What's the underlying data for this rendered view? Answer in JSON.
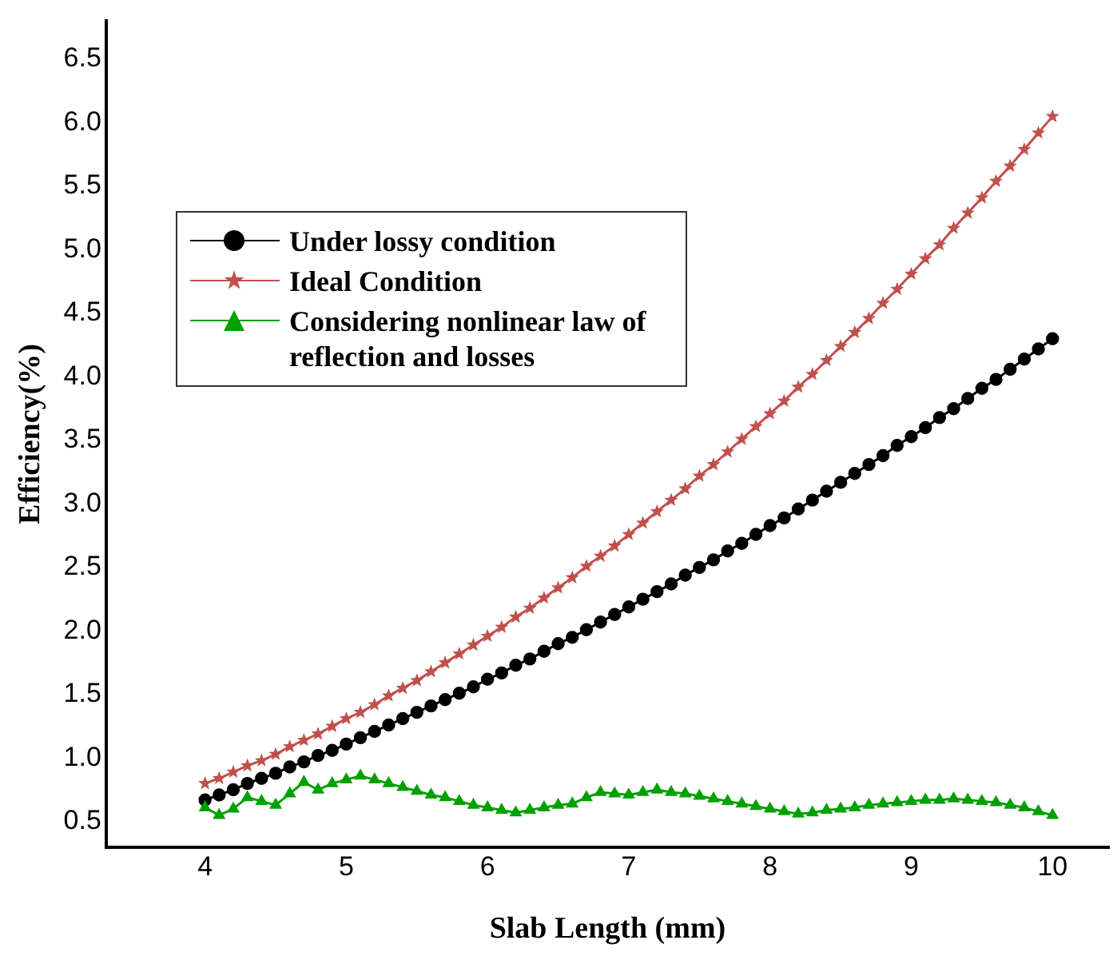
{
  "chart_data": {
    "type": "line",
    "xlabel": "Slab Length (mm)",
    "ylabel": "Efficiency(%)",
    "x": [
      4.0,
      4.1,
      4.2,
      4.3,
      4.4,
      4.5,
      4.6,
      4.7,
      4.8,
      4.9,
      5.0,
      5.1,
      5.2,
      5.3,
      5.4,
      5.5,
      5.6,
      5.7,
      5.8,
      5.9,
      6.0,
      6.1,
      6.2,
      6.3,
      6.4,
      6.5,
      6.6,
      6.7,
      6.8,
      6.9,
      7.0,
      7.1,
      7.2,
      7.3,
      7.4,
      7.5,
      7.6,
      7.7,
      7.8,
      7.9,
      8.0,
      8.1,
      8.2,
      8.3,
      8.4,
      8.5,
      8.6,
      8.7,
      8.8,
      8.9,
      9.0,
      9.1,
      9.2,
      9.3,
      9.4,
      9.5,
      9.6,
      9.7,
      9.8,
      9.9,
      10.0
    ],
    "series": [
      {
        "name": "Under lossy condition",
        "color": "#000000",
        "marker": "circle",
        "values": [
          0.67,
          0.71,
          0.75,
          0.8,
          0.84,
          0.88,
          0.93,
          0.97,
          1.02,
          1.06,
          1.11,
          1.16,
          1.21,
          1.26,
          1.31,
          1.36,
          1.41,
          1.46,
          1.51,
          1.56,
          1.62,
          1.67,
          1.73,
          1.78,
          1.84,
          1.9,
          1.95,
          2.01,
          2.07,
          2.13,
          2.19,
          2.25,
          2.31,
          2.37,
          2.44,
          2.5,
          2.56,
          2.63,
          2.69,
          2.76,
          2.83,
          2.89,
          2.96,
          3.03,
          3.1,
          3.17,
          3.24,
          3.31,
          3.38,
          3.46,
          3.53,
          3.6,
          3.68,
          3.75,
          3.83,
          3.91,
          3.98,
          4.06,
          4.14,
          4.22,
          4.3
        ]
      },
      {
        "name": "Ideal Condition",
        "color": "#c0504d",
        "marker": "star",
        "values": [
          0.8,
          0.84,
          0.89,
          0.94,
          0.98,
          1.03,
          1.09,
          1.14,
          1.19,
          1.25,
          1.31,
          1.36,
          1.42,
          1.49,
          1.55,
          1.61,
          1.68,
          1.75,
          1.82,
          1.89,
          1.96,
          2.03,
          2.11,
          2.18,
          2.26,
          2.34,
          2.42,
          2.51,
          2.59,
          2.67,
          2.76,
          2.85,
          2.94,
          3.03,
          3.12,
          3.22,
          3.31,
          3.41,
          3.51,
          3.61,
          3.71,
          3.81,
          3.92,
          4.02,
          4.13,
          4.24,
          4.35,
          4.46,
          4.58,
          4.69,
          4.81,
          4.93,
          5.04,
          5.17,
          5.29,
          5.41,
          5.54,
          5.66,
          5.79,
          5.92,
          6.05
        ]
      },
      {
        "name": "Considering nonlinear law of reflection and losses",
        "color": "#00a000",
        "marker": "triangle",
        "values": [
          0.61,
          0.55,
          0.6,
          0.69,
          0.66,
          0.63,
          0.72,
          0.81,
          0.75,
          0.8,
          0.83,
          0.86,
          0.83,
          0.8,
          0.77,
          0.74,
          0.71,
          0.69,
          0.66,
          0.63,
          0.61,
          0.59,
          0.57,
          0.59,
          0.61,
          0.63,
          0.64,
          0.69,
          0.73,
          0.72,
          0.71,
          0.73,
          0.75,
          0.73,
          0.72,
          0.7,
          0.68,
          0.66,
          0.64,
          0.62,
          0.6,
          0.58,
          0.56,
          0.57,
          0.59,
          0.6,
          0.61,
          0.63,
          0.64,
          0.65,
          0.66,
          0.67,
          0.67,
          0.68,
          0.67,
          0.66,
          0.65,
          0.63,
          0.61,
          0.58,
          0.55
        ]
      }
    ],
    "xlim": [
      3.3,
      10.4
    ],
    "xticks": [
      4,
      5,
      6,
      7,
      8,
      9,
      10
    ],
    "ylim": [
      0.3,
      6.8
    ],
    "yticks": [
      0.5,
      {
        "value": 1,
        "label": "1.0"
      },
      1.5,
      {
        "value": 2,
        "label": "2.0"
      },
      2.5,
      {
        "value": 3,
        "label": "3.0"
      },
      3.5,
      {
        "value": 4,
        "label": "4.0"
      },
      4.5,
      {
        "value": 5,
        "label": "5.0"
      },
      5.5,
      {
        "value": 6,
        "label": "6.0"
      },
      6.5
    ],
    "grid": false,
    "legend": "left",
    "line_style": "solid"
  }
}
